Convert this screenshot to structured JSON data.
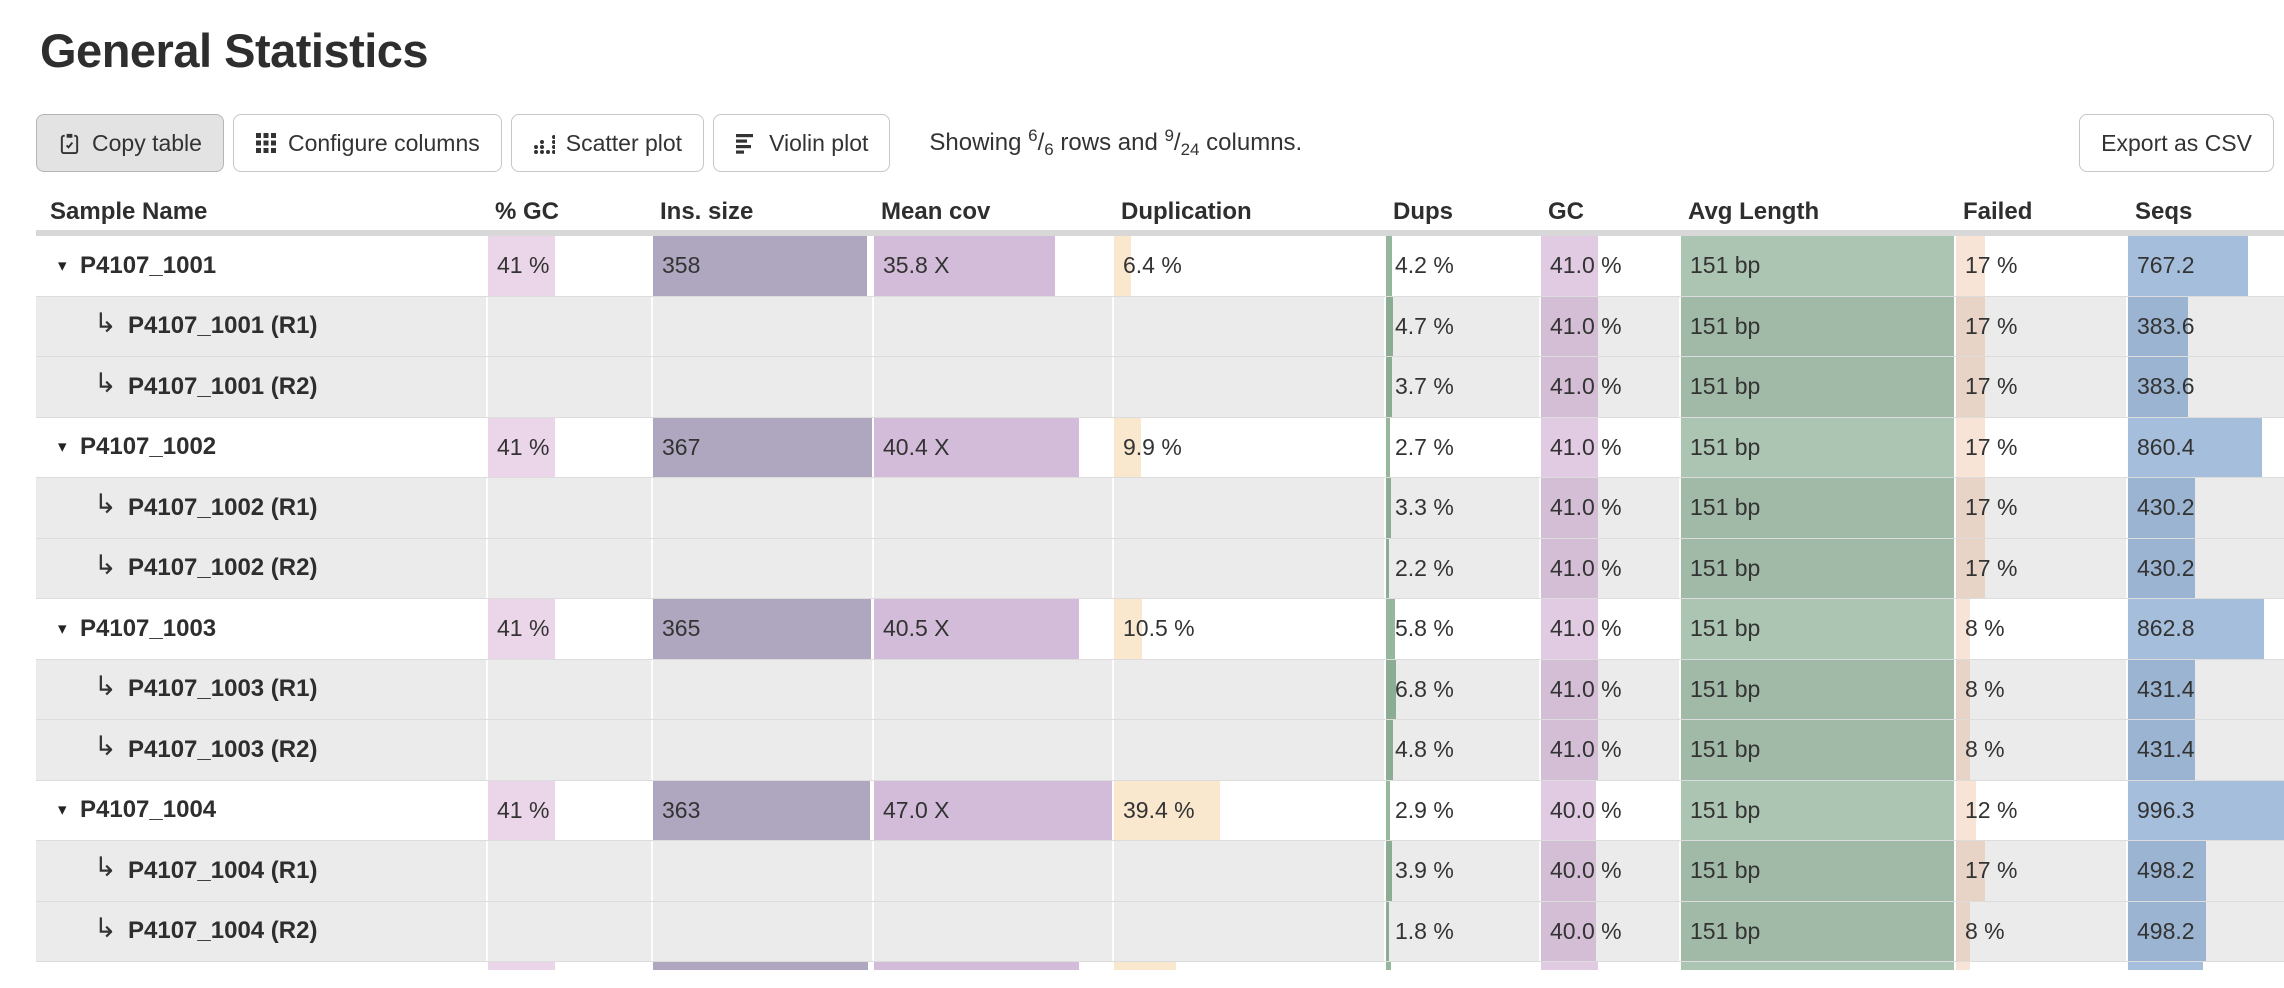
{
  "page": {
    "title": "General Statistics"
  },
  "toolbar": {
    "buttons": [
      {
        "label": "Copy table",
        "icon": "clipboard-icon",
        "active": true
      },
      {
        "label": "Configure columns",
        "icon": "grid-icon",
        "active": false
      },
      {
        "label": "Scatter plot",
        "icon": "scatter-icon",
        "active": false
      },
      {
        "label": "Violin plot",
        "icon": "violin-icon",
        "active": false
      }
    ],
    "showing": {
      "prefix": "Showing ",
      "rows_shown": "6",
      "slash1": "/",
      "rows_total": "6",
      "middle": " rows and ",
      "cols_shown": "9",
      "slash2": "/",
      "cols_total": "24",
      "suffix": " columns."
    },
    "export_label": "Export as CSV"
  },
  "icons": {
    "collapse_glyph": "▾",
    "subrow_glyph": "↳"
  },
  "colors": {
    "bars": {
      "gcp": "rgba(202,146,198,0.38)",
      "ins": "rgba(110,95,140,0.55)",
      "cov": "rgba(150,95,165,0.42)",
      "dup": "rgba(235,170,80,0.28)",
      "dups": "rgba(45,110,60,0.5)",
      "gc": "rgba(170,105,175,0.35)",
      "len": "rgba(70,125,85,0.45)",
      "fail": "rgba(225,130,70,0.22)",
      "seqs": "rgba(75,125,185,0.5)"
    },
    "header_band": "#d8d8d8",
    "subrow_bg": "#ebebeb",
    "row_border": "#dcdcdc"
  },
  "table": {
    "columns": [
      {
        "key": "name",
        "label": "Sample Name"
      },
      {
        "key": "gcp",
        "label": "% GC"
      },
      {
        "key": "ins",
        "label": "Ins. size"
      },
      {
        "key": "cov",
        "label": "Mean cov"
      },
      {
        "key": "dup",
        "label": "Duplication"
      },
      {
        "key": "dups",
        "label": "Dups"
      },
      {
        "key": "gc",
        "label": "GC"
      },
      {
        "key": "len",
        "label": "Avg Length"
      },
      {
        "key": "fail",
        "label": "Failed"
      },
      {
        "key": "seqs",
        "label": "Seqs"
      }
    ],
    "rows": [
      {
        "type": "main",
        "name": "P4107_1001",
        "cells": {
          "gcp": {
            "text": "41 %",
            "bar": 41
          },
          "ins": {
            "text": "358",
            "bar": 97.5
          },
          "cov": {
            "text": "35.8 X",
            "bar": 76
          },
          "dup": {
            "text": "6.4 %",
            "bar": 6.4
          },
          "dups": {
            "text": "4.2 %",
            "bar": 4.2
          },
          "gc": {
            "text": "41.0 %",
            "bar": 41
          },
          "len": {
            "text": "151 bp",
            "bar": 100
          },
          "fail": {
            "text": "17 %",
            "bar": 17
          },
          "seqs": {
            "text": "767.2",
            "bar": 77
          }
        }
      },
      {
        "type": "sub",
        "name": "P4107_1001 (R1)",
        "cells": {
          "dups": {
            "text": "4.7 %",
            "bar": 4.7
          },
          "gc": {
            "text": "41.0 %",
            "bar": 41
          },
          "len": {
            "text": "151 bp",
            "bar": 100
          },
          "fail": {
            "text": "17 %",
            "bar": 17
          },
          "seqs": {
            "text": "383.6",
            "bar": 38.5
          }
        }
      },
      {
        "type": "sub",
        "name": "P4107_1001 (R2)",
        "cells": {
          "dups": {
            "text": "3.7 %",
            "bar": 3.7
          },
          "gc": {
            "text": "41.0 %",
            "bar": 41
          },
          "len": {
            "text": "151 bp",
            "bar": 100
          },
          "fail": {
            "text": "17 %",
            "bar": 17
          },
          "seqs": {
            "text": "383.6",
            "bar": 38.5
          }
        }
      },
      {
        "type": "main",
        "name": "P4107_1002",
        "cells": {
          "gcp": {
            "text": "41 %",
            "bar": 41
          },
          "ins": {
            "text": "367",
            "bar": 100
          },
          "cov": {
            "text": "40.4 X",
            "bar": 86
          },
          "dup": {
            "text": "9.9 %",
            "bar": 9.9
          },
          "dups": {
            "text": "2.7 %",
            "bar": 2.7
          },
          "gc": {
            "text": "41.0 %",
            "bar": 41
          },
          "len": {
            "text": "151 bp",
            "bar": 100
          },
          "fail": {
            "text": "17 %",
            "bar": 17
          },
          "seqs": {
            "text": "860.4",
            "bar": 86
          }
        }
      },
      {
        "type": "sub",
        "name": "P4107_1002 (R1)",
        "cells": {
          "dups": {
            "text": "3.3 %",
            "bar": 3.3
          },
          "gc": {
            "text": "41.0 %",
            "bar": 41
          },
          "len": {
            "text": "151 bp",
            "bar": 100
          },
          "fail": {
            "text": "17 %",
            "bar": 17
          },
          "seqs": {
            "text": "430.2",
            "bar": 43
          }
        }
      },
      {
        "type": "sub",
        "name": "P4107_1002 (R2)",
        "cells": {
          "dups": {
            "text": "2.2 %",
            "bar": 2.2
          },
          "gc": {
            "text": "41.0 %",
            "bar": 41
          },
          "len": {
            "text": "151 bp",
            "bar": 100
          },
          "fail": {
            "text": "17 %",
            "bar": 17
          },
          "seqs": {
            "text": "430.2",
            "bar": 43
          }
        }
      },
      {
        "type": "main",
        "name": "P4107_1003",
        "cells": {
          "gcp": {
            "text": "41 %",
            "bar": 41
          },
          "ins": {
            "text": "365",
            "bar": 99.5
          },
          "cov": {
            "text": "40.5 X",
            "bar": 86
          },
          "dup": {
            "text": "10.5 %",
            "bar": 10.5
          },
          "dups": {
            "text": "5.8 %",
            "bar": 5.8
          },
          "gc": {
            "text": "41.0 %",
            "bar": 41
          },
          "len": {
            "text": "151 bp",
            "bar": 100
          },
          "fail": {
            "text": "8 %",
            "bar": 8
          },
          "seqs": {
            "text": "862.8",
            "bar": 87
          }
        }
      },
      {
        "type": "sub",
        "name": "P4107_1003 (R1)",
        "cells": {
          "dups": {
            "text": "6.8 %",
            "bar": 6.8
          },
          "gc": {
            "text": "41.0 %",
            "bar": 41
          },
          "len": {
            "text": "151 bp",
            "bar": 100
          },
          "fail": {
            "text": "8 %",
            "bar": 8
          },
          "seqs": {
            "text": "431.4",
            "bar": 43
          }
        }
      },
      {
        "type": "sub",
        "name": "P4107_1003 (R2)",
        "cells": {
          "dups": {
            "text": "4.8 %",
            "bar": 4.8
          },
          "gc": {
            "text": "41.0 %",
            "bar": 41
          },
          "len": {
            "text": "151 bp",
            "bar": 100
          },
          "fail": {
            "text": "8 %",
            "bar": 8
          },
          "seqs": {
            "text": "431.4",
            "bar": 43
          }
        }
      },
      {
        "type": "main",
        "name": "P4107_1004",
        "cells": {
          "gcp": {
            "text": "41 %",
            "bar": 41
          },
          "ins": {
            "text": "363",
            "bar": 99
          },
          "cov": {
            "text": "47.0 X",
            "bar": 100
          },
          "dup": {
            "text": "39.4 %",
            "bar": 39.4
          },
          "dups": {
            "text": "2.9 %",
            "bar": 2.9
          },
          "gc": {
            "text": "40.0 %",
            "bar": 40
          },
          "len": {
            "text": "151 bp",
            "bar": 100
          },
          "fail": {
            "text": "12 %",
            "bar": 12
          },
          "seqs": {
            "text": "996.3",
            "bar": 100
          }
        }
      },
      {
        "type": "sub",
        "name": "P4107_1004 (R1)",
        "cells": {
          "dups": {
            "text": "3.9 %",
            "bar": 3.9
          },
          "gc": {
            "text": "40.0 %",
            "bar": 40
          },
          "len": {
            "text": "151 bp",
            "bar": 100
          },
          "fail": {
            "text": "17 %",
            "bar": 17
          },
          "seqs": {
            "text": "498.2",
            "bar": 50
          }
        }
      },
      {
        "type": "sub",
        "name": "P4107_1004 (R2)",
        "cells": {
          "dups": {
            "text": "1.8 %",
            "bar": 1.8
          },
          "gc": {
            "text": "40.0 %",
            "bar": 40
          },
          "len": {
            "text": "151 bp",
            "bar": 100
          },
          "fail": {
            "text": "8 %",
            "bar": 8
          },
          "seqs": {
            "text": "498.2",
            "bar": 50
          }
        }
      }
    ],
    "partial_row": {
      "type": "main",
      "name": "",
      "cells": {
        "gcp": {
          "text": "",
          "bar": 41
        },
        "ins": {
          "text": "",
          "bar": 98
        },
        "cov": {
          "text": "",
          "bar": 86
        },
        "dup": {
          "text": "",
          "bar": 23
        },
        "dups": {
          "text": "",
          "bar": 3
        },
        "gc": {
          "text": "",
          "bar": 41
        },
        "len": {
          "text": "",
          "bar": 100
        },
        "fail": {
          "text": "",
          "bar": 8
        },
        "seqs": {
          "text": "",
          "bar": 48
        }
      }
    }
  }
}
